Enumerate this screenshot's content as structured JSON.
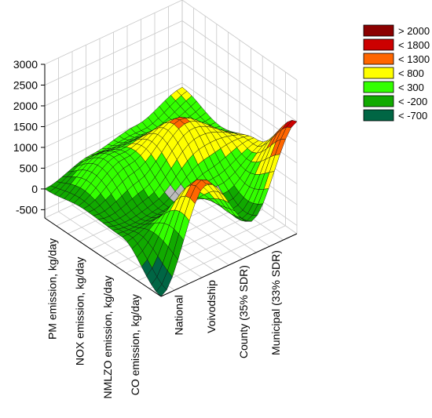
{
  "chart_data": {
    "type": "surface3d",
    "title": "",
    "z_axis": {
      "range": [
        -700,
        3000
      ],
      "ticks": [
        3000,
        2500,
        2000,
        1500,
        1000,
        500,
        0,
        -500
      ],
      "tick_labels": [
        "3000",
        "2500",
        "2000",
        "1500",
        "1000",
        "500",
        "0",
        "-500"
      ]
    },
    "x_axis": {
      "categories": [
        "National",
        "Voivodship",
        "County (35% SDR)",
        "Municipal (33% SDR)"
      ]
    },
    "y_axis": {
      "categories": [
        "PM emission, kg/day",
        "NOX emission, kg/day",
        "NMLZO emission, kg/day",
        "CO emission, kg/day"
      ]
    },
    "grid": true,
    "legend": {
      "placement": "top-right",
      "entries": [
        {
          "label": "> 2000",
          "color": "#8b0000"
        },
        {
          "label": "< 1800",
          "color": "#cc0000"
        },
        {
          "label": "< 1300",
          "color": "#ff6600"
        },
        {
          "label": "< 800",
          "color": "#ffff00"
        },
        {
          "label": "< 300",
          "color": "#33ff00"
        },
        {
          "label": "< -200",
          "color": "#11aa00"
        },
        {
          "label": "< -700",
          "color": "#006644"
        }
      ]
    },
    "surface_control_values": {
      "description_rows": "rows follow emission categories, columns follow administrative levels",
      "z": [
        [
          0,
          300,
          500,
          900
        ],
        [
          150,
          700,
          1300,
          600
        ],
        [
          100,
          200,
          500,
          900
        ],
        [
          -700,
          1500,
          100,
          2000
        ]
      ]
    }
  }
}
